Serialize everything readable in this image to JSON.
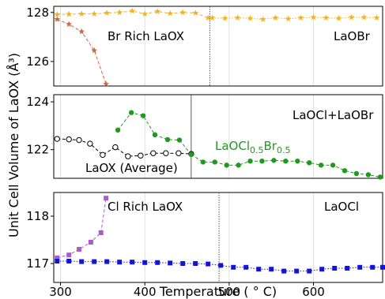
{
  "chart_data": {
    "type": "line",
    "xlabel": "Temperature ( ° C)",
    "ylabel": "Unit Cell Volume of LaOX (Å³)",
    "xlim": [
      292,
      682
    ],
    "x_ticks": [
      300,
      400,
      500,
      600
    ],
    "panels": [
      {
        "ylim": [
          125,
          128.25
        ],
        "y_ticks": [
          126,
          128
        ],
        "divider_x": 477,
        "annotations": [
          "Br Rich LaOX",
          "LaOBr"
        ],
        "series": [
          {
            "color": "#f5b21f",
            "marker": "star",
            "line": "dashed",
            "x": [
              296,
              310,
              325,
              340,
              355,
              370,
              385,
              400,
              415,
              430,
              445,
              460,
              475
            ],
            "y": [
              127.92,
              127.93,
              127.94,
              127.94,
              127.98,
              128.0,
              128.06,
              127.94,
              128.04,
              127.96,
              128.0,
              127.98,
              127.78
            ]
          },
          {
            "color": "#f5b21f",
            "marker": "star",
            "line": "dotted",
            "x": [
              480,
              495,
              510,
              525,
              540,
              555,
              570,
              585,
              600,
              615,
              630,
              645,
              660,
              675
            ],
            "y": [
              127.78,
              127.76,
              127.78,
              127.76,
              127.72,
              127.78,
              127.74,
              127.78,
              127.8,
              127.78,
              127.76,
              127.8,
              127.8,
              127.78
            ]
          },
          {
            "color": "#cd6848",
            "marker": "star",
            "line": "dashed",
            "x": [
              296,
              310,
              325,
              340,
              354
            ],
            "y": [
              127.72,
              127.52,
              127.22,
              126.45,
              125.08
            ]
          }
        ]
      },
      {
        "ylim": [
          120.8,
          124.3
        ],
        "y_ticks": [
          122,
          124
        ],
        "divider_x": 455,
        "annotations": [
          "LaOCl+LaOBr",
          "LaOX (Average)"
        ],
        "series": [
          {
            "color": "#000000",
            "marker": "open-circle",
            "line": "dashed",
            "x": [
              296,
              310,
              322,
              335,
              350,
              365,
              380,
              395,
              410,
              425,
              440,
              455
            ],
            "y": [
              122.45,
              122.43,
              122.4,
              122.25,
              121.78,
              122.1,
              121.72,
              121.75,
              121.85,
              121.85,
              121.85,
              121.82
            ]
          },
          {
            "color": "#1e9a1e",
            "marker": "circle",
            "line": "dashed",
            "x": [
              368,
              384,
              398,
              412,
              427,
              441,
              455
            ],
            "y": [
              122.82,
              123.55,
              123.42,
              122.62,
              122.42,
              122.4,
              121.8
            ]
          },
          {
            "color": "#1e9a1e",
            "marker": "circle",
            "line": "dashed",
            "label": "LaOCl0.5Br0.5",
            "x": [
              455,
              469,
              483,
              497,
              511,
              525,
              539,
              553,
              567,
              581,
              595,
              609,
              623,
              637,
              651,
              665,
              679
            ],
            "y": [
              121.8,
              121.48,
              121.48,
              121.35,
              121.35,
              121.52,
              121.52,
              121.55,
              121.52,
              121.52,
              121.45,
              121.35,
              121.35,
              121.12,
              121.0,
              120.95,
              120.85
            ]
          }
        ]
      },
      {
        "ylim": [
          116.6,
          118.5
        ],
        "y_ticks": [
          117,
          118
        ],
        "divider_x": 488,
        "annotations": [
          "Cl Rich LaOX",
          "LaOCl"
        ],
        "series": [
          {
            "color": "#a95bc9",
            "marker": "square",
            "line": "dashed",
            "x": [
              296,
              310,
              322,
              336,
              348,
              354
            ],
            "y": [
              117.12,
              117.18,
              117.3,
              117.45,
              117.65,
              118.38
            ]
          },
          {
            "color": "#1414d8",
            "marker": "square",
            "line": "dotted",
            "x": [
              296,
              310,
              325,
              340,
              355,
              370,
              385,
              400,
              415,
              430,
              445,
              460,
              475,
              490,
              505,
              520,
              535,
              550,
              565,
              580,
              595,
              610,
              625,
              640,
              655,
              670,
              682
            ],
            "y": [
              117.05,
              117.05,
              117.04,
              117.04,
              117.04,
              117.03,
              117.03,
              117.02,
              117.02,
              117.01,
              117.0,
              117.0,
              116.99,
              116.96,
              116.92,
              116.92,
              116.88,
              116.88,
              116.84,
              116.84,
              116.84,
              116.88,
              116.9,
              116.9,
              116.92,
              116.92,
              116.92
            ]
          }
        ]
      }
    ]
  }
}
